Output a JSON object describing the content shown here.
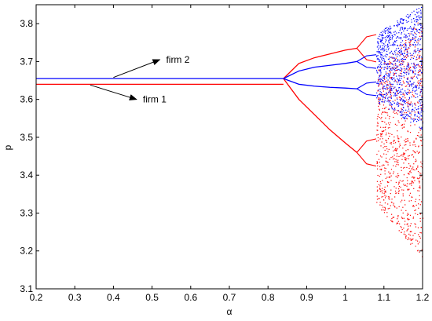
{
  "chart_data": {
    "type": "scatter",
    "title": "",
    "xlabel": "α",
    "ylabel": "p",
    "xlim": [
      0.2,
      1.2
    ],
    "ylim": [
      3.1,
      3.85
    ],
    "xticks": [
      "0.2",
      "0.3",
      "0.4",
      "0.5",
      "0.6",
      "0.7",
      "0.8",
      "0.9",
      "1",
      "1.1",
      "1.2"
    ],
    "yticks": [
      "3.1",
      "3.2",
      "3.3",
      "3.4",
      "3.5",
      "3.6",
      "3.7",
      "3.8"
    ],
    "grid": false,
    "series": [
      {
        "name": "firm 1",
        "color": "#ff0000",
        "fixed_point": 3.64,
        "period2_x": [
          0.84,
          0.88,
          0.92,
          0.96,
          1.0,
          1.03
        ],
        "period2_upper": [
          3.655,
          3.695,
          3.71,
          3.72,
          3.73,
          3.735
        ],
        "period2_lower": [
          3.655,
          3.6,
          3.56,
          3.52,
          3.485,
          3.46
        ],
        "chaos_range_x": [
          1.08,
          1.2
        ],
        "chaos_range_y": [
          3.18,
          3.82
        ]
      },
      {
        "name": "firm 2",
        "color": "#0000ff",
        "fixed_point": 3.655,
        "period2_x": [
          0.84,
          0.88,
          0.92,
          0.96,
          1.0,
          1.03
        ],
        "period2_upper": [
          3.655,
          3.675,
          3.685,
          3.69,
          3.695,
          3.7
        ],
        "period2_lower": [
          3.655,
          3.64,
          3.635,
          3.632,
          3.63,
          3.628
        ],
        "chaos_range_x": [
          1.08,
          1.2
        ],
        "chaos_range_y": [
          3.52,
          3.85
        ]
      }
    ],
    "annotations": [
      {
        "text": "firm 2",
        "arrow_from": [
          0.4,
          3.658
        ],
        "arrow_to": [
          0.52,
          3.705
        ]
      },
      {
        "text": "firm 1",
        "arrow_from": [
          0.34,
          3.638
        ],
        "arrow_to": [
          0.46,
          3.6
        ]
      }
    ]
  }
}
